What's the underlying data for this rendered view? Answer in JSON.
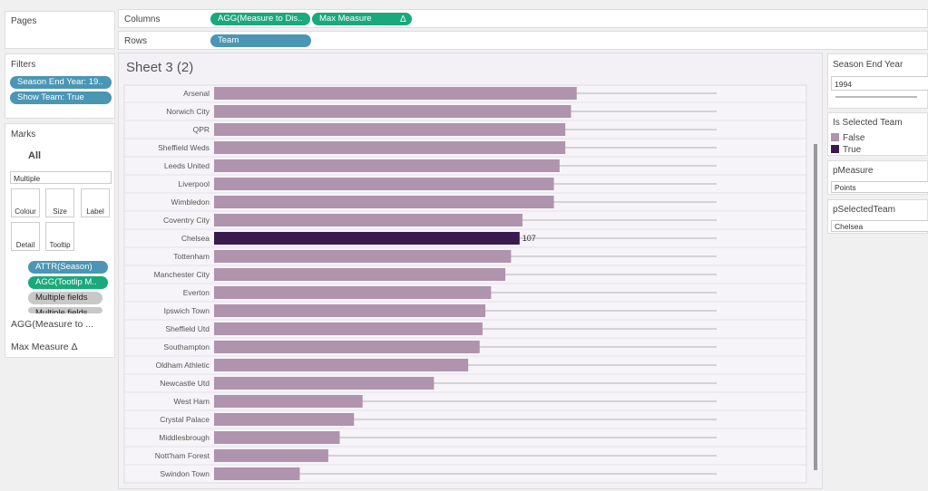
{
  "pages": {
    "title": "Pages"
  },
  "filters": {
    "title": "Filters",
    "items": [
      "Season End Year: 19..",
      "Show Team: True"
    ]
  },
  "marks": {
    "title": "Marks",
    "all": "All",
    "type": "Multiple",
    "buttons": [
      "Colour",
      "Size",
      "Label",
      "Detail",
      "Tooltip"
    ],
    "fields": [
      "ATTR(Season)",
      "AGG(Tootlip M..",
      "Multiple fields",
      "Multiple fields"
    ],
    "measures": [
      "AGG(Measure to ...",
      "Max Measure Δ"
    ]
  },
  "shelves": {
    "columns_label": "Columns",
    "columns": [
      "AGG(Measure to Dis..",
      "Max Measure"
    ],
    "columns_delta": "Δ",
    "rows_label": "Rows",
    "rows": [
      "Team"
    ]
  },
  "chart_data": {
    "type": "bar",
    "title": "Sheet 3 (2)",
    "categories": [
      "Arsenal",
      "Norwich City",
      "QPR",
      "Sheffield Weds",
      "Leeds United",
      "Liverpool",
      "Wimbledon",
      "Coventry City",
      "Chelsea",
      "Tottenham",
      "Manchester City",
      "Everton",
      "Ipswich Town",
      "Sheffield Utd",
      "Southampton",
      "Oldham Athletic",
      "Newcastle Utd",
      "West Ham",
      "Crystal Palace",
      "Middlesbrough",
      "Nott'ham Forest",
      "Swindon Town"
    ],
    "values": [
      127,
      125,
      123,
      123,
      121,
      119,
      119,
      108,
      107,
      104,
      102,
      97,
      95,
      94,
      93,
      89,
      77,
      52,
      49,
      44,
      40,
      30
    ],
    "is_selected": [
      false,
      false,
      false,
      false,
      false,
      false,
      false,
      false,
      true,
      false,
      false,
      false,
      false,
      false,
      false,
      false,
      false,
      false,
      false,
      false,
      false,
      false
    ],
    "max_measure": 176,
    "legend": {
      "title": "Is Selected Team",
      "items": [
        {
          "name": "False",
          "color": "#b093ac"
        },
        {
          "name": "True",
          "color": "#3a1a4e"
        }
      ]
    }
  },
  "parameters": [
    {
      "title": "Season End Year",
      "value": "1994"
    },
    {
      "title": "pMeasure",
      "value": "Points"
    },
    {
      "title": "pSelectedTeam",
      "value": "Chelsea"
    }
  ]
}
